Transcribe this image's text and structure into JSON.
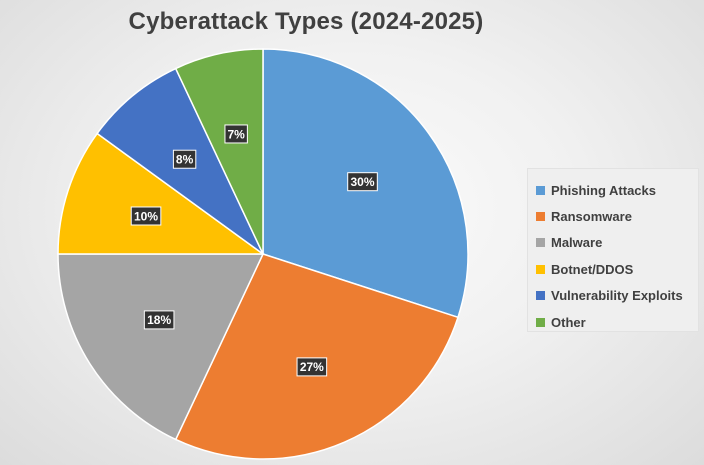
{
  "chart_data": {
    "type": "pie",
    "title": "Cyberattack Types (2024-2025)",
    "categories": [
      "Phishing Attacks",
      "Ransomware",
      "Malware",
      "Botnet/DDOS",
      "Vulnerability Exploits",
      "Other"
    ],
    "values": [
      30,
      27,
      18,
      10,
      8,
      7
    ],
    "data_labels": [
      "30%",
      "27%",
      "18%",
      "10%",
      "8%",
      "7%"
    ],
    "colors": [
      "#5B9BD5",
      "#ED7D31",
      "#A5A5A5",
      "#FFC000",
      "#4472C4",
      "#70AD47"
    ],
    "legend": "right",
    "start_angle": "12 o'clock",
    "direction": "clockwise"
  }
}
